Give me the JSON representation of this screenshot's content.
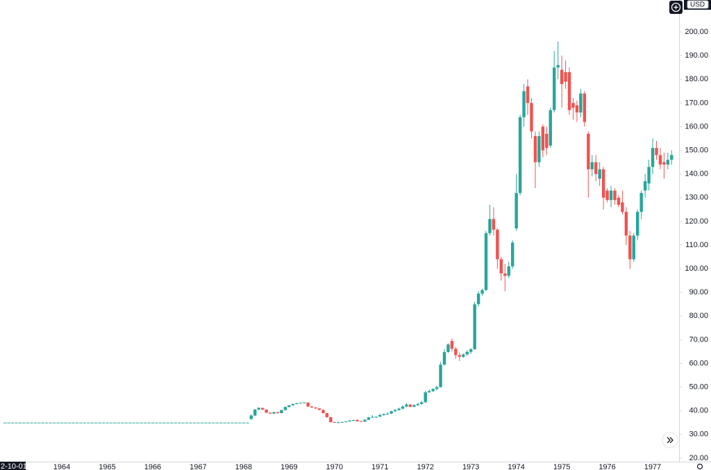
{
  "chart_data": {
    "type": "candlestick",
    "currency": "USD",
    "date_label": "2-10-01",
    "up_color": "#26a69a",
    "down_color": "#ef5350",
    "xlim": [
      1962.64,
      1977.58
    ],
    "xticks": [
      1964,
      1965,
      1966,
      1967,
      1968,
      1969,
      1970,
      1971,
      1972,
      1973,
      1974,
      1975,
      1976,
      1977
    ],
    "ylim": [
      18.5,
      213.5
    ],
    "yticks": [
      {
        "value": 20,
        "label": "20.00"
      },
      {
        "value": 30,
        "label": "30.00"
      },
      {
        "value": 40,
        "label": "40.00"
      },
      {
        "value": 50,
        "label": "50.00"
      },
      {
        "value": 60,
        "label": "60.00"
      },
      {
        "value": 70,
        "label": "70.00"
      },
      {
        "value": 80,
        "label": "80.00"
      },
      {
        "value": 90,
        "label": "90.00"
      },
      {
        "value": 100,
        "label": "100.00"
      },
      {
        "value": 110,
        "label": "110.00"
      },
      {
        "value": 120,
        "label": "120.00"
      },
      {
        "value": 130,
        "label": "130.00"
      },
      {
        "value": 140,
        "label": "140.00"
      },
      {
        "value": 150,
        "label": "150.00"
      },
      {
        "value": 160,
        "label": "160.00"
      },
      {
        "value": 170,
        "label": "170.00"
      },
      {
        "value": 180,
        "label": "180.00"
      },
      {
        "value": 190,
        "label": "190.00"
      },
      {
        "value": 200,
        "label": "200.00"
      }
    ],
    "x": [
      "1962-10",
      "1962-11",
      "1962-12",
      "1963-01",
      "1963-02",
      "1963-03",
      "1963-04",
      "1963-05",
      "1963-06",
      "1963-07",
      "1963-08",
      "1963-09",
      "1963-10",
      "1963-11",
      "1963-12",
      "1964-01",
      "1964-02",
      "1964-03",
      "1964-04",
      "1964-05",
      "1964-06",
      "1964-07",
      "1964-08",
      "1964-09",
      "1964-10",
      "1964-11",
      "1964-12",
      "1965-01",
      "1965-02",
      "1965-03",
      "1965-04",
      "1965-05",
      "1965-06",
      "1965-07",
      "1965-08",
      "1965-09",
      "1965-10",
      "1965-11",
      "1965-12",
      "1966-01",
      "1966-02",
      "1966-03",
      "1966-04",
      "1966-05",
      "1966-06",
      "1966-07",
      "1966-08",
      "1966-09",
      "1966-10",
      "1966-11",
      "1966-12",
      "1967-01",
      "1967-02",
      "1967-03",
      "1967-04",
      "1967-05",
      "1967-06",
      "1967-07",
      "1967-08",
      "1967-09",
      "1967-10",
      "1967-11",
      "1967-12",
      "1968-01",
      "1968-02",
      "1968-03",
      "1968-04",
      "1968-05",
      "1968-06",
      "1968-07",
      "1968-08",
      "1968-09",
      "1968-10",
      "1968-11",
      "1968-12",
      "1969-01",
      "1969-02",
      "1969-03",
      "1969-04",
      "1969-05",
      "1969-06",
      "1969-07",
      "1969-08",
      "1969-09",
      "1969-10",
      "1969-11",
      "1969-12",
      "1970-01",
      "1970-02",
      "1970-03",
      "1970-04",
      "1970-05",
      "1970-06",
      "1970-07",
      "1970-08",
      "1970-09",
      "1970-10",
      "1970-11",
      "1970-12",
      "1971-01",
      "1971-02",
      "1971-03",
      "1971-04",
      "1971-05",
      "1971-06",
      "1971-07",
      "1971-08",
      "1971-09",
      "1971-10",
      "1971-11",
      "1971-12",
      "1972-01",
      "1972-02",
      "1972-03",
      "1972-04",
      "1972-05",
      "1972-06",
      "1972-07",
      "1972-08",
      "1972-09",
      "1972-10",
      "1972-11",
      "1972-12",
      "1973-01",
      "1973-02",
      "1973-03",
      "1973-04",
      "1973-05",
      "1973-06",
      "1973-07",
      "1973-08",
      "1973-09",
      "1973-10",
      "1973-11",
      "1973-12",
      "1974-01",
      "1974-02",
      "1974-03",
      "1974-04",
      "1974-05",
      "1974-06",
      "1974-07",
      "1974-08",
      "1974-09",
      "1974-10",
      "1974-11",
      "1974-12",
      "1975-01",
      "1975-02",
      "1975-03",
      "1975-04",
      "1975-05",
      "1975-06",
      "1975-07",
      "1975-08",
      "1975-09",
      "1975-10",
      "1975-11",
      "1975-12",
      "1976-01",
      "1976-02",
      "1976-03",
      "1976-04",
      "1976-05",
      "1976-06",
      "1976-07",
      "1976-08",
      "1976-09",
      "1976-10",
      "1976-11",
      "1976-12",
      "1977-01",
      "1977-02",
      "1977-03",
      "1977-04",
      "1977-05",
      "1977-06"
    ],
    "open": [
      35,
      35,
      35,
      35,
      35,
      35,
      35,
      35,
      35,
      35,
      35,
      35,
      35,
      35,
      35,
      35,
      35,
      35,
      35,
      35,
      35,
      35,
      35,
      35,
      35,
      35,
      35,
      35,
      35,
      35,
      35,
      35,
      35,
      35,
      35,
      35,
      35,
      35,
      35,
      35,
      35,
      35,
      35,
      35,
      35,
      35,
      35,
      35,
      35,
      35,
      35,
      35,
      35,
      35,
      35,
      35,
      35,
      35,
      35,
      35,
      35,
      35,
      35,
      35,
      35,
      36.5,
      38,
      40.5,
      41.2,
      40.5,
      39.2,
      38.8,
      39.4,
      39,
      40.3,
      41.6,
      42.3,
      42.9,
      43.2,
      43.4,
      43.5,
      41.8,
      41.4,
      41,
      40.4,
      39,
      37.3,
      35.2,
      35,
      35.1,
      35.2,
      35.5,
      35.9,
      36.1,
      35.6,
      35.4,
      36.2,
      37.2,
      37.3,
      37.5,
      38.2,
      38.6,
      38.8,
      39.8,
      40.3,
      40.9,
      41.8,
      42.6,
      41.7,
      42.4,
      42.9,
      43.6,
      47.8,
      48.3,
      49.2,
      50,
      59.5,
      64.8,
      69.5,
      66.2,
      63.5,
      62.8,
      63.8,
      64.9,
      66,
      85,
      89.5,
      91,
      115,
      121,
      116.5,
      104,
      98,
      97,
      101,
      117,
      132,
      164,
      177,
      170,
      156,
      145,
      160,
      157,
      152,
      167,
      185,
      184,
      183,
      183,
      170,
      169,
      166,
      174,
      157,
      142,
      145,
      138,
      142,
      133,
      129,
      133,
      130,
      128,
      124,
      114,
      104,
      114,
      124,
      133,
      136,
      143,
      151,
      148,
      145,
      144,
      146
    ],
    "high": [
      35,
      35,
      35,
      35,
      35,
      35,
      35,
      35,
      35,
      35,
      35,
      35,
      35,
      35,
      35,
      35,
      35,
      35,
      35,
      35,
      35,
      35,
      35,
      35,
      35,
      35,
      35,
      35,
      35,
      35,
      35,
      35,
      35,
      35,
      35,
      35,
      35,
      35,
      35,
      35,
      35,
      35,
      35,
      35,
      35,
      35,
      35,
      35,
      35,
      35,
      35,
      35,
      35,
      35,
      35,
      35,
      35,
      35,
      35,
      35,
      35,
      35,
      35,
      35,
      35,
      38.5,
      40.8,
      41.5,
      41.3,
      40.6,
      39.3,
      39.6,
      39.6,
      40.5,
      41.8,
      42.5,
      43,
      43.4,
      43.5,
      43.6,
      43.5,
      42,
      41.5,
      41.1,
      40.5,
      39.1,
      37.4,
      35.4,
      35.4,
      35.4,
      35.6,
      36,
      36.2,
      36.4,
      35.8,
      36.5,
      37.4,
      38.2,
      37.6,
      38.7,
      38.9,
      39.4,
      40,
      40.8,
      41.3,
      42.3,
      43.3,
      42.8,
      42.6,
      43.3,
      44.2,
      48.5,
      49,
      49.5,
      50.5,
      60.5,
      66,
      68.5,
      70.5,
      67,
      64.5,
      64.2,
      65.5,
      66.5,
      86,
      90.5,
      91.5,
      116,
      127,
      126,
      117,
      105,
      102,
      103,
      112,
      140,
      165,
      178,
      180,
      172,
      158,
      158,
      161,
      160,
      168,
      192,
      196,
      190,
      188,
      185,
      172,
      171,
      176,
      175,
      158,
      148,
      148,
      145,
      143,
      134,
      135,
      134,
      131,
      133,
      126,
      116,
      115,
      125,
      133,
      140,
      146,
      155,
      154,
      151,
      149,
      149,
      150
    ],
    "low": [
      35,
      35,
      35,
      35,
      35,
      35,
      35,
      35,
      35,
      35,
      35,
      35,
      35,
      35,
      35,
      35,
      35,
      35,
      35,
      35,
      35,
      35,
      35,
      35,
      35,
      35,
      35,
      35,
      35,
      35,
      35,
      35,
      35,
      35,
      35,
      35,
      35,
      35,
      35,
      35,
      35,
      35,
      35,
      35,
      35,
      35,
      35,
      35,
      35,
      35,
      35,
      35,
      35,
      35,
      35,
      35,
      35,
      35,
      35,
      35,
      35,
      35,
      35,
      35,
      35,
      36.2,
      37.8,
      40.2,
      40.3,
      39,
      38.6,
      38.6,
      38.8,
      38.9,
      40.1,
      41.4,
      42.2,
      42.7,
      43,
      43.2,
      41.6,
      41.2,
      40.8,
      40.2,
      38.8,
      37,
      35,
      34.9,
      34.9,
      35,
      35.1,
      35.4,
      35.6,
      35.4,
      35.3,
      35.3,
      36.1,
      37,
      36.9,
      37.4,
      37.9,
      38.3,
      38.6,
      39.5,
      40,
      40.6,
      41.5,
      41.4,
      41.5,
      42.1,
      42.5,
      43.4,
      47.5,
      47.9,
      48.6,
      49.8,
      59,
      64.5,
      65,
      62,
      61,
      62.3,
      63.2,
      64,
      65.8,
      84,
      88.5,
      90.5,
      114,
      114,
      100,
      95,
      90.5,
      96,
      100,
      116,
      131,
      160,
      165,
      155,
      134,
      143,
      147,
      148,
      151,
      166,
      180,
      168,
      176,
      165,
      163,
      162,
      164,
      160,
      130,
      139,
      137,
      135,
      125,
      128,
      126,
      127,
      126,
      123,
      110,
      100,
      103,
      112,
      121,
      130,
      133,
      140,
      146,
      142,
      138,
      142,
      144
    ],
    "close": [
      35,
      35,
      35,
      35,
      35,
      35,
      35,
      35,
      35,
      35,
      35,
      35,
      35,
      35,
      35,
      35,
      35,
      35,
      35,
      35,
      35,
      35,
      35,
      35,
      35,
      35,
      35,
      35,
      35,
      35,
      35,
      35,
      35,
      35,
      35,
      35,
      35,
      35,
      35,
      35,
      35,
      35,
      35,
      35,
      35,
      35,
      35,
      35,
      35,
      35,
      35,
      35,
      35,
      35,
      35,
      35,
      35,
      35,
      35,
      35,
      35,
      35,
      35,
      35,
      35,
      38,
      40.5,
      41.2,
      40.5,
      39.2,
      38.8,
      39.4,
      39,
      40.3,
      41.6,
      42.3,
      42.9,
      43.2,
      43.4,
      43.5,
      41.8,
      41.4,
      41,
      40.4,
      39,
      37.3,
      35.2,
      35,
      35.1,
      35.2,
      35.5,
      35.9,
      36.1,
      35.6,
      35.4,
      36.2,
      37.2,
      37.4,
      37.5,
      38.2,
      38.6,
      38.8,
      39.8,
      40.3,
      40.9,
      41.8,
      42.6,
      41.7,
      42.4,
      42.9,
      43.6,
      47.8,
      48.3,
      49.2,
      50,
      59.5,
      64.8,
      68,
      66.2,
      63.5,
      62.8,
      63.8,
      64.9,
      66,
      85,
      89.5,
      91,
      115,
      121,
      116.5,
      104,
      98,
      97,
      101,
      111,
      132,
      164,
      175,
      170,
      158,
      145,
      156,
      150,
      151,
      167,
      185,
      186,
      178,
      179,
      167,
      168,
      166,
      174,
      162,
      142,
      145,
      140,
      142,
      130,
      129,
      133,
      129,
      127,
      124,
      114,
      104,
      114,
      124,
      132,
      137,
      143,
      151,
      148,
      144,
      144,
      146,
      148
    ]
  }
}
